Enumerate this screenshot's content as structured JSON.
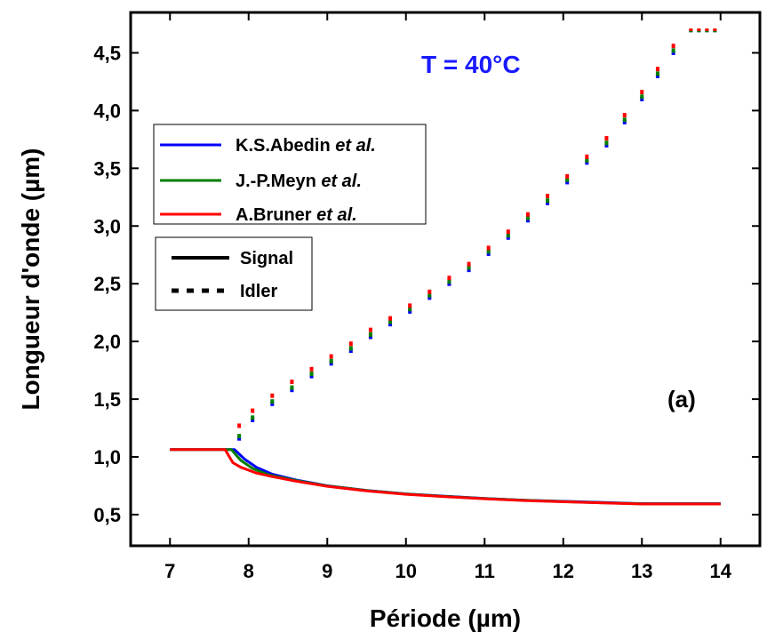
{
  "chart_data": {
    "type": "line",
    "xlabel": "Période (µm)",
    "ylabel": "Longueur d'onde (µm)",
    "xlim": [
      6.5,
      14.5
    ],
    "ylim": [
      0.23,
      4.85
    ],
    "x_ticks": [
      7,
      8,
      9,
      10,
      11,
      12,
      13,
      14
    ],
    "x_tick_labels": [
      "7",
      "8",
      "9",
      "10",
      "11",
      "12",
      "13",
      "14"
    ],
    "y_ticks": [
      0.5,
      1.0,
      1.5,
      2.0,
      2.5,
      3.0,
      3.5,
      4.0,
      4.5
    ],
    "y_tick_labels": [
      "0,5",
      "1,0",
      "1,5",
      "2,0",
      "2,5",
      "3,0",
      "3,5",
      "4,0",
      "4,5"
    ],
    "grid": false,
    "annotations": [
      {
        "text": "T = 40°C",
        "color": "#1a1aff"
      },
      {
        "text": "(a)",
        "color": "#000000"
      }
    ],
    "legend_authors": {
      "placement": "upper-left",
      "entries": [
        {
          "name": "K.S.Abedin",
          "suffix": "et al.",
          "color": "#0000ff"
        },
        {
          "name": "J.-P.Meyn",
          "suffix": "et al.",
          "color": "#008000"
        },
        {
          "name": "A.Bruner",
          "suffix": "et al.",
          "color": "#ff0000"
        }
      ]
    },
    "legend_styles": {
      "placement": "upper-left",
      "entries": [
        {
          "name": "Signal",
          "style": "solid"
        },
        {
          "name": "Idler",
          "style": "dotted"
        }
      ]
    },
    "series": [
      {
        "kind": "signal",
        "color": "#0000ff",
        "x": [
          7.0,
          7.82,
          7.95,
          8.1,
          8.3,
          8.6,
          9.0,
          9.5,
          10.0,
          10.5,
          11.0,
          11.5,
          12.0,
          12.5,
          13.0,
          13.5,
          14.0
        ],
        "y": [
          1.064,
          1.064,
          0.98,
          0.91,
          0.85,
          0.8,
          0.75,
          0.71,
          0.68,
          0.66,
          0.64,
          0.625,
          0.615,
          0.605,
          0.595,
          0.595,
          0.595
        ]
      },
      {
        "kind": "signal",
        "color": "#008000",
        "x": [
          7.0,
          7.78,
          7.9,
          8.05,
          8.25,
          8.6,
          9.0,
          9.5,
          10.0,
          10.5,
          11.0,
          11.5,
          12.0,
          12.5,
          13.0,
          13.5,
          14.0
        ],
        "y": [
          1.064,
          1.064,
          0.97,
          0.9,
          0.845,
          0.795,
          0.748,
          0.708,
          0.678,
          0.657,
          0.639,
          0.624,
          0.613,
          0.603,
          0.594,
          0.594,
          0.594
        ]
      },
      {
        "kind": "signal",
        "color": "#ff0000",
        "x": [
          7.0,
          7.7,
          7.8,
          7.9,
          8.1,
          8.3,
          8.6,
          9.0,
          9.5,
          10.0,
          10.5,
          11.0,
          11.5,
          12.0,
          12.5,
          13.0,
          13.5,
          14.0
        ],
        "y": [
          1.064,
          1.064,
          0.95,
          0.91,
          0.86,
          0.83,
          0.79,
          0.745,
          0.705,
          0.676,
          0.655,
          0.637,
          0.622,
          0.611,
          0.601,
          0.592,
          0.592,
          0.592
        ]
      },
      {
        "kind": "idler",
        "color": "#0000ff",
        "x": [
          7.88,
          8.05,
          8.3,
          8.55,
          8.8,
          9.05,
          9.3,
          9.55,
          9.8,
          10.05,
          10.3,
          10.55,
          10.8,
          11.05,
          11.3,
          11.55,
          11.8,
          12.05,
          12.3,
          12.55,
          12.78,
          13.0,
          13.2,
          13.4,
          13.6,
          13.8
        ],
        "y": [
          1.16,
          1.32,
          1.46,
          1.58,
          1.7,
          1.81,
          1.92,
          2.04,
          2.15,
          2.26,
          2.38,
          2.5,
          2.62,
          2.76,
          2.9,
          3.05,
          3.2,
          3.38,
          3.55,
          3.7,
          3.9,
          4.1,
          4.3,
          4.5,
          4.68,
          4.69
        ]
      },
      {
        "kind": "idler",
        "color": "#008000",
        "x": [
          7.88,
          8.05,
          8.3,
          8.55,
          8.8,
          9.05,
          9.3,
          9.55,
          9.8,
          10.05,
          10.3,
          10.55,
          10.8,
          11.05,
          11.3,
          11.55,
          11.8,
          12.05,
          12.3,
          12.55,
          12.78,
          13.0,
          13.2,
          13.4,
          13.6,
          13.8
        ],
        "y": [
          1.18,
          1.34,
          1.48,
          1.6,
          1.72,
          1.83,
          1.94,
          2.06,
          2.17,
          2.28,
          2.4,
          2.52,
          2.64,
          2.78,
          2.92,
          3.07,
          3.22,
          3.4,
          3.57,
          3.72,
          3.92,
          4.12,
          4.32,
          4.52,
          4.69,
          4.69
        ]
      },
      {
        "kind": "idler",
        "color": "#ff0000",
        "x": [
          7.88,
          8.05,
          8.3,
          8.55,
          8.8,
          9.05,
          9.3,
          9.55,
          9.8,
          10.05,
          10.3,
          10.55,
          10.8,
          11.05,
          11.3,
          11.55,
          11.8,
          12.05,
          12.3,
          12.55,
          12.78,
          13.0,
          13.2,
          13.4,
          13.6,
          13.8
        ],
        "y": [
          1.27,
          1.4,
          1.53,
          1.65,
          1.76,
          1.87,
          1.98,
          2.1,
          2.2,
          2.31,
          2.43,
          2.55,
          2.67,
          2.81,
          2.95,
          3.1,
          3.26,
          3.43,
          3.6,
          3.76,
          3.96,
          4.16,
          4.36,
          4.56,
          4.7,
          4.7
        ]
      }
    ]
  }
}
